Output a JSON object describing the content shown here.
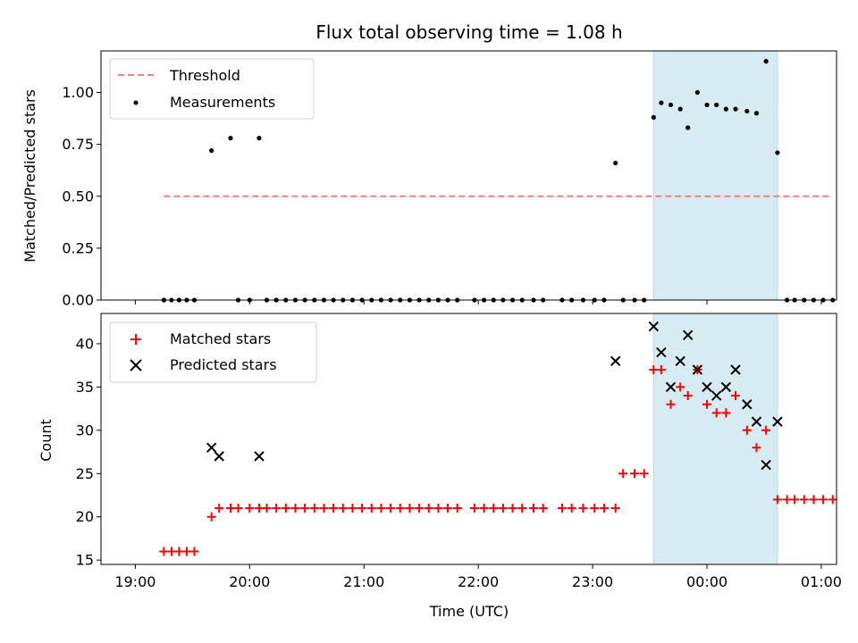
{
  "chart_data": [
    {
      "type": "scatter",
      "title": "Flux total observing time = 1.08 h",
      "xlabel": "",
      "ylabel": "Matched/Predicted stars",
      "ylim": [
        0,
        1.2
      ],
      "yticks": [
        0.0,
        0.25,
        0.5,
        0.75,
        1.0
      ],
      "ytick_labels": [
        "0.00",
        "0.25",
        "0.50",
        "0.75",
        "1.00"
      ],
      "xlim_min": [
        -18,
        368
      ],
      "shaded_range_min": [
        272,
        337
      ],
      "legend": {
        "placement": "top-left",
        "entries": [
          "Threshold",
          "Measurements"
        ]
      },
      "threshold": {
        "name": "Threshold",
        "value": 0.5,
        "x_range_min": [
          15,
          365
        ],
        "color": "#f08080"
      },
      "measurements": {
        "name": "Measurements",
        "color": "#000000",
        "x_min": [
          15,
          19,
          23,
          27,
          31,
          40,
          50,
          54,
          60,
          65,
          69,
          74,
          79,
          84,
          89,
          94,
          99,
          104,
          109,
          114,
          119,
          124,
          129,
          134,
          139,
          144,
          149,
          154,
          159,
          164,
          169,
          178,
          183,
          188,
          193,
          198,
          203,
          209,
          214,
          224,
          229,
          235,
          241,
          246,
          252,
          256,
          262,
          267,
          272,
          276,
          281,
          286,
          290,
          295,
          300,
          305,
          310,
          315,
          321,
          326,
          331,
          337,
          342,
          346,
          351,
          356,
          361,
          366
        ],
        "y": [
          0,
          0,
          0,
          0,
          0,
          0.72,
          0.78,
          0,
          0,
          0.78,
          0,
          0,
          0,
          0,
          0,
          0,
          0,
          0,
          0,
          0,
          0,
          0,
          0,
          0,
          0,
          0,
          0,
          0,
          0,
          0,
          0,
          0,
          0,
          0,
          0,
          0,
          0,
          0,
          0,
          0,
          0,
          0,
          0,
          0,
          0.66,
          0,
          0,
          0,
          0.88,
          0.95,
          0.94,
          0.92,
          0.83,
          1.0,
          0.94,
          0.94,
          0.92,
          0.92,
          0.91,
          0.9,
          1.15,
          0.71,
          0,
          0,
          0,
          0,
          0,
          0
        ]
      }
    },
    {
      "type": "scatter",
      "title": "",
      "xlabel": "Time (UTC)",
      "ylabel": "Count",
      "ylim": [
        14.5,
        43.5
      ],
      "yticks": [
        15,
        20,
        25,
        30,
        35,
        40
      ],
      "ytick_labels": [
        "15",
        "20",
        "25",
        "30",
        "35",
        "40"
      ],
      "xticks_min": [
        0,
        60,
        120,
        180,
        240,
        300,
        360
      ],
      "xtick_labels": [
        "19:00",
        "20:00",
        "21:00",
        "22:00",
        "23:00",
        "00:00",
        "01:00"
      ],
      "legend": {
        "placement": "top-left",
        "entries": [
          "Matched stars",
          "Predicted stars"
        ]
      },
      "series": [
        {
          "name": "Matched stars",
          "marker": "plus",
          "color": "#ff0000",
          "x_min": [
            15,
            19,
            23,
            27,
            31,
            40,
            44,
            50,
            54,
            60,
            65,
            69,
            74,
            79,
            84,
            89,
            94,
            99,
            104,
            109,
            114,
            119,
            124,
            129,
            134,
            139,
            144,
            149,
            154,
            159,
            164,
            169,
            178,
            183,
            188,
            193,
            198,
            203,
            209,
            214,
            224,
            229,
            235,
            241,
            246,
            252,
            256,
            262,
            267,
            272,
            276,
            281,
            286,
            290,
            295,
            300,
            305,
            310,
            315,
            321,
            326,
            331,
            337,
            342,
            346,
            351,
            356,
            361,
            366
          ],
          "y": [
            16,
            16,
            16,
            16,
            16,
            20,
            21,
            21,
            21,
            21,
            21,
            21,
            21,
            21,
            21,
            21,
            21,
            21,
            21,
            21,
            21,
            21,
            21,
            21,
            21,
            21,
            21,
            21,
            21,
            21,
            21,
            21,
            21,
            21,
            21,
            21,
            21,
            21,
            21,
            21,
            21,
            21,
            21,
            21,
            21,
            21,
            25,
            25,
            25,
            37,
            37,
            33,
            35,
            34,
            37,
            33,
            32,
            32,
            34,
            30,
            28,
            30,
            22,
            22,
            22,
            22,
            22,
            22,
            22
          ]
        },
        {
          "name": "Predicted stars",
          "marker": "x",
          "color": "#000000",
          "x_min": [
            40,
            44,
            65,
            252,
            272,
            276,
            281,
            286,
            290,
            295,
            300,
            305,
            310,
            315,
            321,
            326,
            331,
            337
          ],
          "y": [
            28,
            27,
            27,
            38,
            42,
            39,
            35,
            38,
            41,
            37,
            35,
            34,
            35,
            37,
            33,
            31,
            26,
            31
          ]
        }
      ]
    }
  ]
}
